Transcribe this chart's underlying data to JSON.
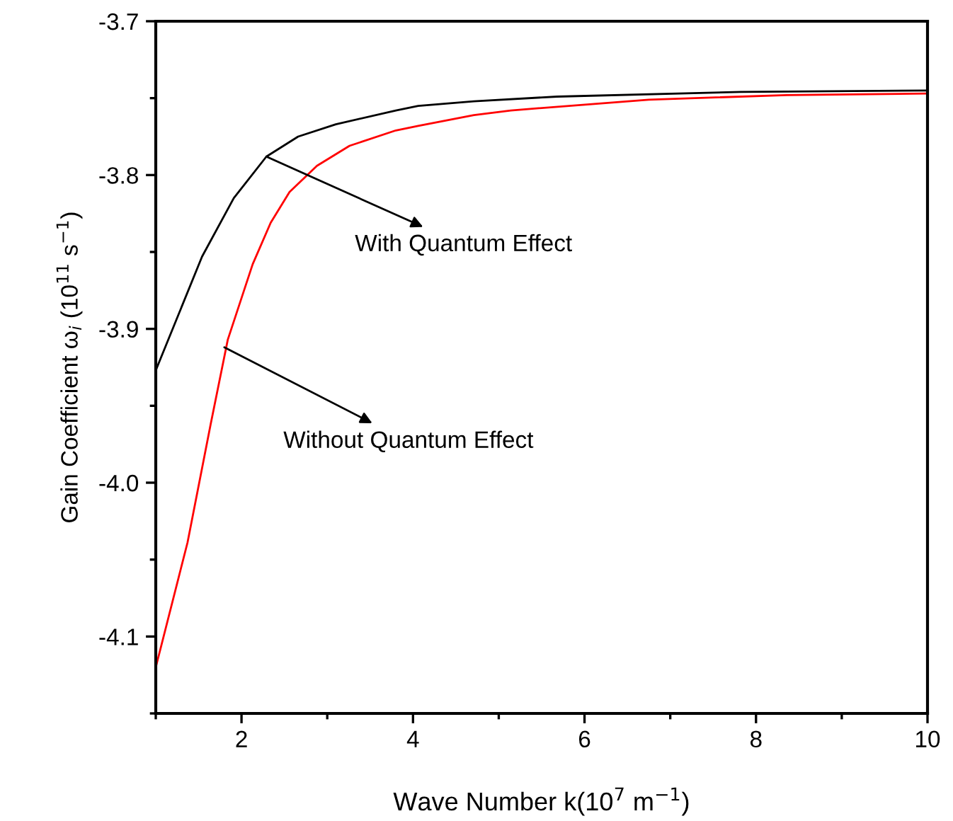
{
  "chart_data": {
    "type": "line",
    "xlabel": "Wave Number k(10$^{7}$ m$^{−1}$)",
    "ylabel": "Gain Coefficient ω$_{i}$ (10$^{11}$ s$^{−1}$)",
    "series": [
      {
        "color": "#000000",
        "x": [
          1,
          1.54,
          1.91,
          2.29,
          2.66,
          3.1,
          3.8,
          4.06,
          4.71,
          5.68,
          7.82,
          10
        ],
        "values": [
          -3.927,
          -3.853,
          -3.815,
          -3.788,
          -3.775,
          -3.767,
          -3.758,
          -3.755,
          -3.752,
          -3.749,
          -3.746,
          -3.745
        ]
      },
      {
        "color": "#ff0000",
        "x": [
          1,
          1.37,
          1.64,
          1.84,
          2.13,
          2.34,
          2.56,
          2.88,
          3.26,
          3.8,
          4.06,
          4.71,
          5.14,
          6.75,
          8.36,
          10
        ],
        "values": [
          -4.12,
          -4.039,
          -3.962,
          -3.907,
          -3.858,
          -3.831,
          -3.811,
          -3.794,
          -3.781,
          -3.771,
          -3.768,
          -3.761,
          -3.758,
          -3.751,
          -3.748,
          -3.747
        ]
      }
    ],
    "annotations": [
      {
        "text": "With Quantum Effect",
        "x": 2.29,
        "y": -3.788
      },
      {
        "text": "Without Quantum Effect",
        "x": 1.8,
        "y": -3.912
      }
    ],
    "xlim": [
      1,
      10
    ],
    "xticks": [
      2,
      4,
      6,
      8,
      10
    ],
    "ylim": [
      -4.15,
      -3.7
    ],
    "yticks": [
      {
        "value": -4.1,
        "label": "-4.1"
      },
      {
        "value": -4.0,
        "label": "-4.0"
      },
      {
        "value": -3.9,
        "label": "-3.9"
      },
      {
        "value": -3.8,
        "label": "-3.8"
      },
      {
        "value": -3.7,
        "label": "-3.7"
      }
    ],
    "grid": false,
    "legend": false,
    "marker": "none",
    "line_style": "solid"
  }
}
